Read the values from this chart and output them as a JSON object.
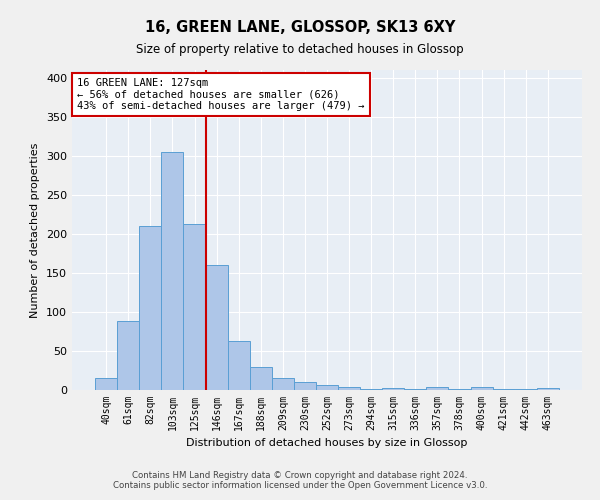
{
  "title": "16, GREEN LANE, GLOSSOP, SK13 6XY",
  "subtitle": "Size of property relative to detached houses in Glossop",
  "xlabel": "Distribution of detached houses by size in Glossop",
  "ylabel": "Number of detached properties",
  "categories": [
    "40sqm",
    "61sqm",
    "82sqm",
    "103sqm",
    "125sqm",
    "146sqm",
    "167sqm",
    "188sqm",
    "209sqm",
    "230sqm",
    "252sqm",
    "273sqm",
    "294sqm",
    "315sqm",
    "336sqm",
    "357sqm",
    "378sqm",
    "400sqm",
    "421sqm",
    "442sqm",
    "463sqm"
  ],
  "values": [
    15,
    88,
    210,
    305,
    213,
    160,
    63,
    30,
    16,
    10,
    6,
    4,
    1,
    3,
    1,
    4,
    1,
    4,
    1,
    1,
    3
  ],
  "bar_color": "#aec6e8",
  "bar_edgecolor": "#5a9fd4",
  "bg_color": "#e8eef5",
  "grid_color": "#ffffff",
  "vline_x": 4.5,
  "annotation_title": "16 GREEN LANE: 127sqm",
  "annotation_line1": "← 56% of detached houses are smaller (626)",
  "annotation_line2": "43% of semi-detached houses are larger (479) →",
  "vline_color": "#cc0000",
  "annotation_box_color": "#cc0000",
  "ylim": [
    0,
    410
  ],
  "yticks": [
    0,
    50,
    100,
    150,
    200,
    250,
    300,
    350,
    400
  ],
  "footer_line1": "Contains HM Land Registry data © Crown copyright and database right 2024.",
  "footer_line2": "Contains public sector information licensed under the Open Government Licence v3.0."
}
